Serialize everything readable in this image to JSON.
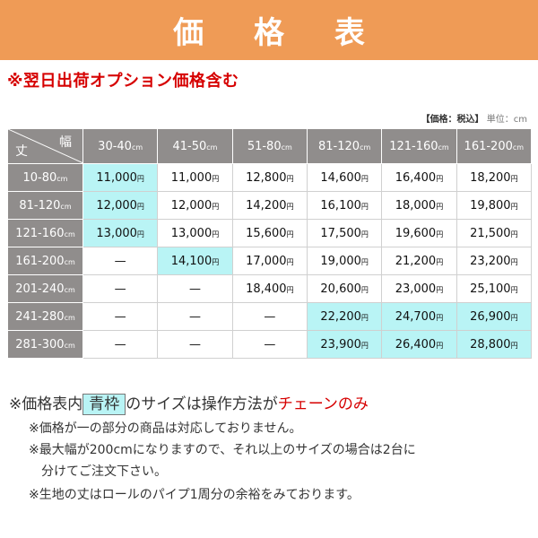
{
  "header": {
    "title": "価 格 表"
  },
  "subtitle": "※翌日出荷オプション価格含む",
  "unit_note": {
    "bold": "【価格：税込】",
    "unit": "単位：cm"
  },
  "table": {
    "corner_row_label": "丈",
    "corner_col_label": "幅",
    "columns": [
      "30-40",
      "41-50",
      "51-80",
      "81-120",
      "121-160",
      "161-200"
    ],
    "column_unit": "cm",
    "yen_unit": "円",
    "rows": [
      {
        "label": "10-80",
        "cells": [
          {
            "v": "11,000",
            "hl": true
          },
          {
            "v": "11,000",
            "hl": false
          },
          {
            "v": "12,800",
            "hl": false
          },
          {
            "v": "14,600",
            "hl": false
          },
          {
            "v": "16,400",
            "hl": false
          },
          {
            "v": "18,200",
            "hl": false
          }
        ]
      },
      {
        "label": "81-120",
        "cells": [
          {
            "v": "12,000",
            "hl": true
          },
          {
            "v": "12,000",
            "hl": false
          },
          {
            "v": "14,200",
            "hl": false
          },
          {
            "v": "16,100",
            "hl": false
          },
          {
            "v": "18,000",
            "hl": false
          },
          {
            "v": "19,800",
            "hl": false
          }
        ]
      },
      {
        "label": "121-160",
        "cells": [
          {
            "v": "13,000",
            "hl": true
          },
          {
            "v": "13,000",
            "hl": false
          },
          {
            "v": "15,600",
            "hl": false
          },
          {
            "v": "17,500",
            "hl": false
          },
          {
            "v": "19,600",
            "hl": false
          },
          {
            "v": "21,500",
            "hl": false
          }
        ]
      },
      {
        "label": "161-200",
        "cells": [
          {
            "v": "—",
            "hl": false
          },
          {
            "v": "14,100",
            "hl": true
          },
          {
            "v": "17,000",
            "hl": false
          },
          {
            "v": "19,000",
            "hl": false
          },
          {
            "v": "21,200",
            "hl": false
          },
          {
            "v": "23,200",
            "hl": false
          }
        ]
      },
      {
        "label": "201-240",
        "cells": [
          {
            "v": "—",
            "hl": false
          },
          {
            "v": "—",
            "hl": false
          },
          {
            "v": "18,400",
            "hl": false
          },
          {
            "v": "20,600",
            "hl": false
          },
          {
            "v": "23,000",
            "hl": false
          },
          {
            "v": "25,100",
            "hl": false
          }
        ]
      },
      {
        "label": "241-280",
        "cells": [
          {
            "v": "—",
            "hl": false
          },
          {
            "v": "—",
            "hl": false
          },
          {
            "v": "—",
            "hl": false
          },
          {
            "v": "22,200",
            "hl": true
          },
          {
            "v": "24,700",
            "hl": true
          },
          {
            "v": "26,900",
            "hl": true
          }
        ]
      },
      {
        "label": "281-300",
        "cells": [
          {
            "v": "—",
            "hl": false
          },
          {
            "v": "—",
            "hl": false
          },
          {
            "v": "—",
            "hl": false
          },
          {
            "v": "23,900",
            "hl": true
          },
          {
            "v": "26,400",
            "hl": true
          },
          {
            "v": "28,800",
            "hl": true
          }
        ]
      }
    ]
  },
  "notes": {
    "line1_prefix": "※価格表内",
    "line1_box": "青枠",
    "line1_mid": "のサイズは操作方法が",
    "line1_red": "チェーンのみ",
    "line2": "※価格が一の部分の商品は対応しておりません。",
    "line3": "※最大幅が200cmになりますので、それ以上のサイズの場合は2台に",
    "line3b": "分けてご注文下さい。",
    "line4": "※生地の丈はロールのパイプ1周分の余裕をみております。"
  }
}
